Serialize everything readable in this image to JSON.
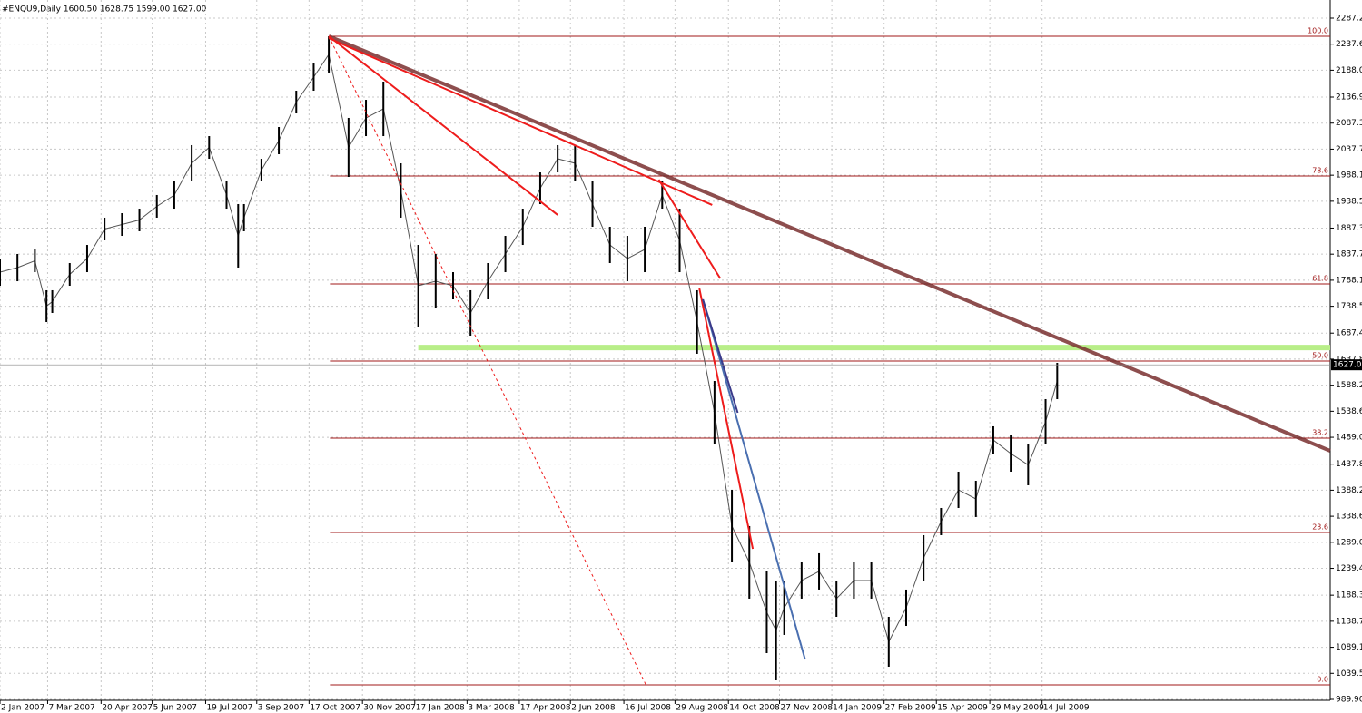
{
  "chart_data": {
    "type": "ohlc",
    "title": "#ENQU9,Daily  1600.50 1628.75 1599.00 1627.00",
    "color": "#000000",
    "grid": true,
    "xlim": [
      0,
      1145
    ],
    "ylim": [
      989.9,
      2287.2
    ],
    "yticks": [
      {
        "value": 2287.2,
        "label": "2287.20"
      },
      {
        "value": 2237.65,
        "label": "2237.65"
      },
      {
        "value": 2188.05,
        "label": "2188.05"
      },
      {
        "value": 2136.9,
        "label": "2136.90"
      },
      {
        "value": 2087.3,
        "label": "2087.30"
      },
      {
        "value": 2037.7,
        "label": "2037.70"
      },
      {
        "value": 1988.1,
        "label": "1988.10"
      },
      {
        "value": 1938.5,
        "label": "1938.50"
      },
      {
        "value": 1887.35,
        "label": "1887.35"
      },
      {
        "value": 1837.75,
        "label": "1837.75"
      },
      {
        "value": 1788.15,
        "label": "1788.15"
      },
      {
        "value": 1738.55,
        "label": "1738.55"
      },
      {
        "value": 1687.4,
        "label": "1687.40"
      },
      {
        "value": 1637.8,
        "label": "1637.80"
      },
      {
        "value": 1588.2,
        "label": "1588.20"
      },
      {
        "value": 1538.6,
        "label": "1538.60"
      },
      {
        "value": 1489,
        "label": "1489.00"
      },
      {
        "value": 1437.85,
        "label": "1437.85"
      },
      {
        "value": 1388.25,
        "label": "1388.25"
      },
      {
        "value": 1338.65,
        "label": "1338.65"
      },
      {
        "value": 1289.05,
        "label": "1289.05"
      },
      {
        "value": 1239.45,
        "label": "1239.45"
      },
      {
        "value": 1188.3,
        "label": "1188.30"
      },
      {
        "value": 1138.7,
        "label": "1138.70"
      },
      {
        "value": 1089.1,
        "label": "1089.10"
      },
      {
        "value": 1039.5,
        "label": "1039.50"
      },
      {
        "value": 989.9,
        "label": "989.90"
      }
    ],
    "xticks": [
      {
        "value": 0,
        "label": "2 Jan 2007"
      },
      {
        "value": 41,
        "label": "7 Mar 2007"
      },
      {
        "value": 87,
        "label": "20 Apr 2007"
      },
      {
        "value": 131,
        "label": "5 Jun 2007"
      },
      {
        "value": 177,
        "label": "19 Jul 2007"
      },
      {
        "value": 221,
        "label": "3 Sep 2007"
      },
      {
        "value": 266,
        "label": "17 Oct 2007"
      },
      {
        "value": 312,
        "label": "30 Nov 2007"
      },
      {
        "value": 357,
        "label": "17 Jan 2008"
      },
      {
        "value": 402,
        "label": "3 Mar 2008"
      },
      {
        "value": 447,
        "label": "17 Apr 2008"
      },
      {
        "value": 491,
        "label": "2 Jun 2008"
      },
      {
        "value": 537,
        "label": "16 Jul 2008"
      },
      {
        "value": 581,
        "label": "29 Aug 2008"
      },
      {
        "value": 627,
        "label": "14 Oct 2008"
      },
      {
        "value": 671,
        "label": "27 Nov 2008"
      },
      {
        "value": 716,
        "label": "14 Jan 2009"
      },
      {
        "value": 761,
        "label": "27 Feb 2009"
      },
      {
        "value": 806,
        "label": "15 Apr 2009"
      },
      {
        "value": 852,
        "label": "29 May 2009"
      },
      {
        "value": 897,
        "label": "14 Jul 2009"
      }
    ],
    "x": [
      0,
      15,
      30,
      40,
      45,
      60,
      75,
      90,
      105,
      120,
      135,
      150,
      165,
      180,
      195,
      205,
      210,
      225,
      240,
      255,
      270,
      283,
      300,
      315,
      330,
      345,
      360,
      375,
      390,
      405,
      420,
      435,
      450,
      465,
      480,
      495,
      510,
      525,
      540,
      555,
      570,
      585,
      600,
      615,
      630,
      645,
      660,
      668,
      675,
      690,
      705,
      720,
      735,
      750,
      765,
      780,
      795,
      810,
      825,
      840,
      855,
      870,
      885,
      900,
      910
    ],
    "high": [
      1829.4,
      1838.1,
      1846.7,
      1769.0,
      1769.0,
      1820.8,
      1855.3,
      1907.2,
      1915.8,
      1924.4,
      1950.4,
      1976.3,
      2045.4,
      2062.6,
      1976.3,
      1933.1,
      1933.1,
      2019.4,
      2079.9,
      2149.0,
      2200.8,
      2252.7,
      2097.2,
      2131.7,
      2166.3,
      2010.8,
      1855.3,
      1838.1,
      1803.5,
      1769.0,
      1820.8,
      1872.6,
      1924.4,
      1993.5,
      2045.4,
      2045.4,
      1976.3,
      1889.9,
      1872.6,
      1889.9,
      1976.3,
      1924.4,
      1769.0,
      1596.2,
      1389.0,
      1319.9,
      1233.5,
      1216.2,
      1216.2,
      1250.8,
      1268.1,
      1216.2,
      1250.8,
      1250.8,
      1147.1,
      1199.0,
      1302.6,
      1354.4,
      1423.5,
      1406.2,
      1509.9,
      1492.6,
      1475.3,
      1561.7,
      1630.8
    ],
    "low": [
      1777.6,
      1786.2,
      1803.5,
      1708.5,
      1725.8,
      1777.6,
      1803.5,
      1864.0,
      1872.6,
      1881.3,
      1907.2,
      1924.4,
      1976.3,
      2019.4,
      1924.4,
      1812.2,
      1881.3,
      1976.3,
      2028.1,
      2105.8,
      2149.0,
      2183.6,
      1984.9,
      2062.6,
      2062.6,
      1907.2,
      1699.9,
      1734.4,
      1751.7,
      1682.6,
      1751.7,
      1803.5,
      1855.3,
      1933.1,
      1993.5,
      1976.3,
      1889.9,
      1820.8,
      1786.2,
      1803.5,
      1924.4,
      1803.5,
      1648.1,
      1475.3,
      1250.8,
      1181.7,
      1078.0,
      1026.2,
      1112.6,
      1181.7,
      1199.0,
      1147.1,
      1181.7,
      1181.7,
      1052.1,
      1129.8,
      1216.2,
      1302.6,
      1354.4,
      1337.2,
      1458.0,
      1423.5,
      1397.6,
      1475.3,
      1561.7
    ],
    "last_price": {
      "value": 1627,
      "label": "1627.00"
    },
    "fib_levels": [
      {
        "label": "100.0",
        "price": 2252.7
      },
      {
        "label": "78.6",
        "price": 1986.6
      },
      {
        "label": "61.8",
        "price": 1781.1
      },
      {
        "label": "50.0",
        "price": 1634.2
      },
      {
        "label": "38.2",
        "price": 1487.4
      },
      {
        "label": "23.6",
        "price": 1307.8
      },
      {
        "label": "0.0",
        "price": 1017.6
      }
    ],
    "fib_color": "#a01818",
    "fib_start": 284,
    "support": {
      "price": 1660,
      "x": [
        360,
        1145
      ],
      "color": "#b8ee88"
    },
    "trendlines": [
      {
        "x": [
          283,
          1145
        ],
        "y": [
          2252.7,
          1463.2
        ],
        "color": "#7a3030",
        "width": 4,
        "dash": false
      },
      {
        "x": [
          283,
          480
        ],
        "y": [
          2252.7,
          1912.4
        ],
        "color": "#ee1c1c",
        "width": 2,
        "dash": false
      },
      {
        "x": [
          283,
          613
        ],
        "y": [
          2249.0,
          1931.4
        ],
        "color": "#ee1c1c",
        "width": 2,
        "dash": false
      },
      {
        "x": [
          567,
          620
        ],
        "y": [
          1979.7,
          1791.4
        ],
        "color": "#ee1c1c",
        "width": 2,
        "dash": false
      },
      {
        "x": [
          602,
          648
        ],
        "y": [
          1772.4,
          1276.6
        ],
        "color": "#ee1c1c",
        "width": 2,
        "dash": false
      },
      {
        "x": [
          605,
          693
        ],
        "y": [
          1751.7,
          1065.9
        ],
        "color": "#4a6fb0",
        "width": 2,
        "dash": false
      },
      {
        "x": [
          605,
          635
        ],
        "y": [
          1751.7,
          1535.8
        ],
        "color": "#3a3a8a",
        "width": 2,
        "dash": false
      },
      {
        "x": [
          283,
          556
        ],
        "y": [
          2252.7,
          1017.6
        ],
        "color": "#ee1c1c",
        "width": 1,
        "dash": true
      }
    ]
  }
}
